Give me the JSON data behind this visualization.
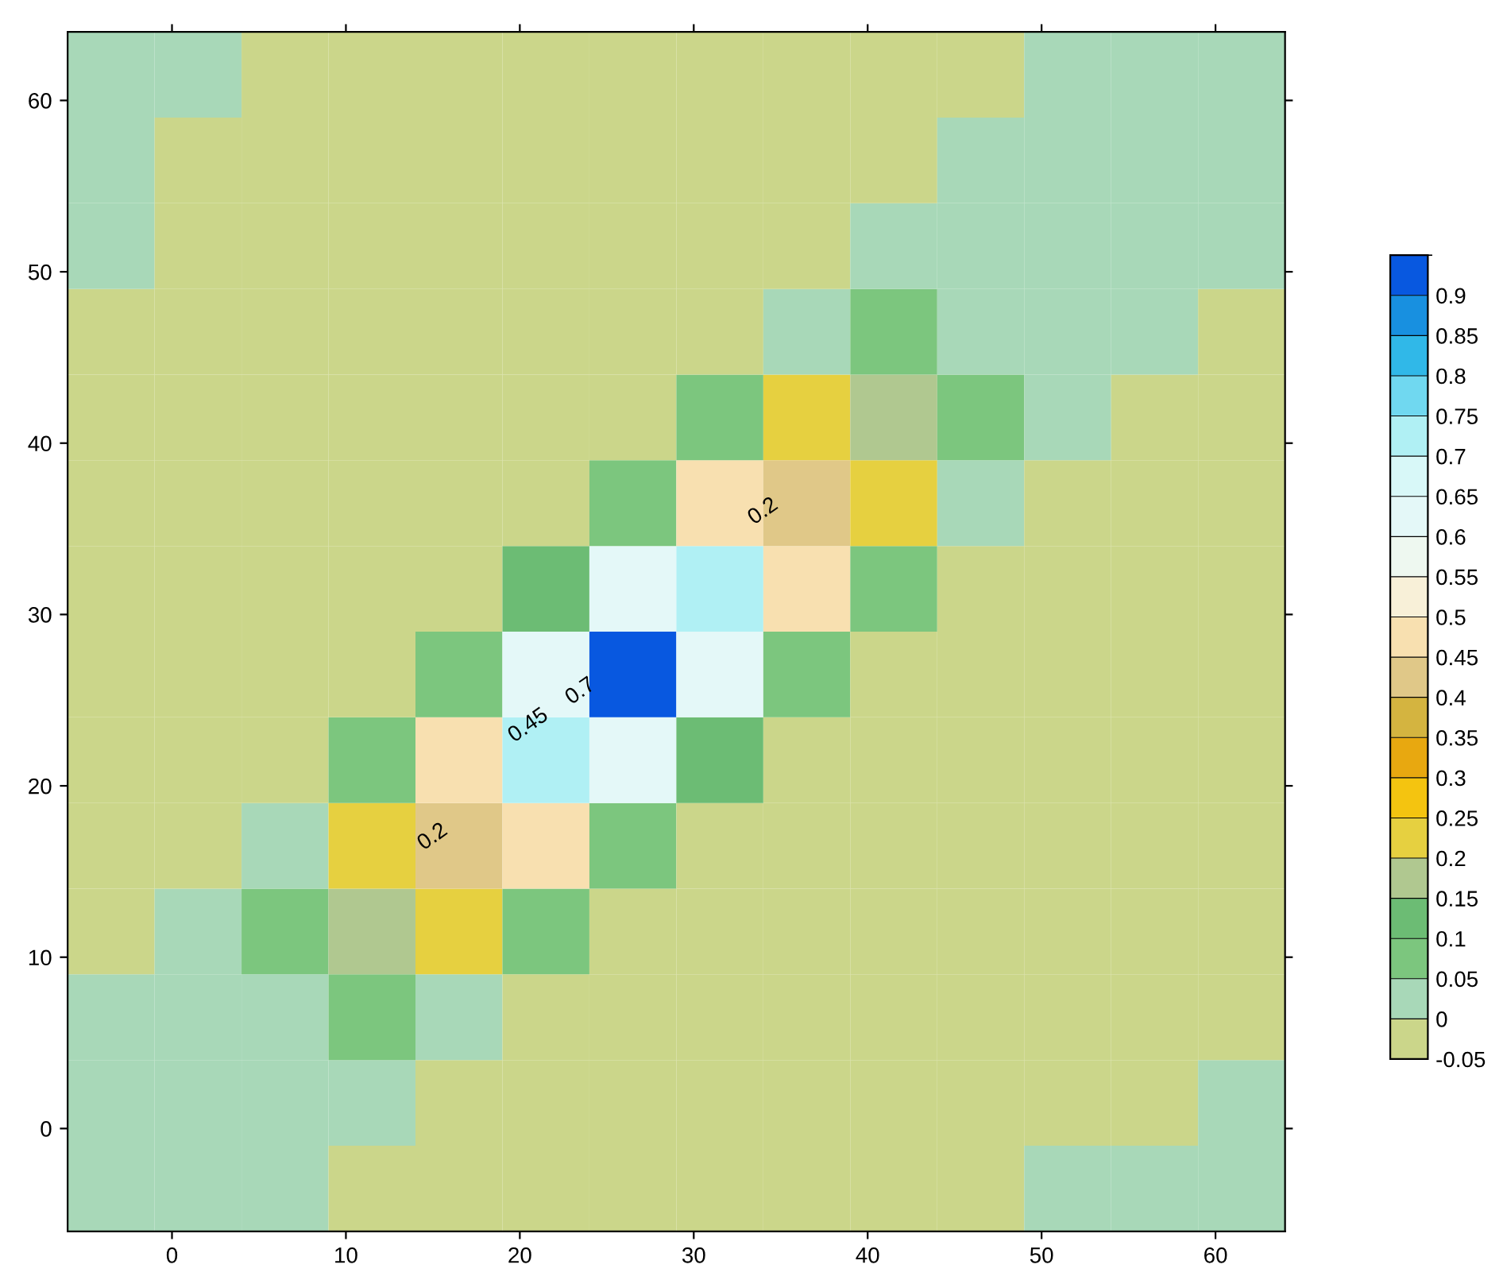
{
  "chart_data": {
    "type": "heatmap",
    "x": [
      -3.5,
      1.5,
      6.5,
      11.5,
      16.5,
      21.5,
      26.5,
      31.5,
      36.5,
      41.5,
      46.5,
      51.5,
      56.5,
      61.5
    ],
    "y": [
      -3.5,
      1.5,
      6.5,
      11.5,
      16.5,
      21.5,
      26.5,
      31.5,
      36.5,
      41.5,
      46.5,
      51.5,
      56.5,
      61.5
    ],
    "cells": [
      [
        0.025,
        0.025,
        0.025,
        -0.025,
        -0.025,
        -0.025,
        -0.025,
        -0.025,
        -0.025,
        -0.025,
        -0.025,
        0.025,
        0.025,
        0.025
      ],
      [
        0.025,
        0.025,
        0.025,
        0.025,
        -0.025,
        -0.025,
        -0.025,
        -0.025,
        -0.025,
        -0.025,
        -0.025,
        -0.025,
        -0.025,
        0.025
      ],
      [
        0.025,
        0.025,
        0.04,
        0.08,
        0.025,
        -0.025,
        -0.025,
        -0.025,
        -0.025,
        -0.025,
        -0.025,
        -0.025,
        -0.025,
        -0.025
      ],
      [
        -0.025,
        0.025,
        0.08,
        0.17,
        0.25,
        0.06,
        -0.025,
        -0.025,
        -0.025,
        -0.025,
        -0.025,
        -0.025,
        -0.025,
        -0.025
      ],
      [
        -0.025,
        -0.025,
        0.025,
        0.25,
        0.42,
        0.45,
        0.1,
        -0.025,
        -0.025,
        -0.025,
        -0.025,
        -0.025,
        -0.025,
        -0.025
      ],
      [
        -0.025,
        -0.025,
        -0.025,
        0.06,
        0.45,
        0.72,
        0.6,
        0.12,
        -0.025,
        -0.025,
        -0.025,
        -0.025,
        -0.025,
        -0.025
      ],
      [
        -0.025,
        -0.025,
        -0.025,
        -0.025,
        0.1,
        0.6,
        0.92,
        0.6,
        0.1,
        -0.025,
        -0.025,
        -0.025,
        -0.025,
        -0.025
      ],
      [
        -0.025,
        -0.025,
        -0.025,
        -0.025,
        -0.025,
        0.12,
        0.6,
        0.72,
        0.45,
        0.06,
        -0.025,
        -0.025,
        -0.025,
        -0.025
      ],
      [
        -0.025,
        -0.025,
        -0.025,
        -0.025,
        -0.025,
        -0.025,
        0.1,
        0.45,
        0.42,
        0.25,
        0.025,
        -0.025,
        -0.025,
        -0.025
      ],
      [
        -0.025,
        -0.025,
        -0.025,
        -0.025,
        -0.025,
        -0.025,
        -0.025,
        0.06,
        0.25,
        0.17,
        0.08,
        0.025,
        -0.025,
        -0.025
      ],
      [
        -0.025,
        -0.025,
        -0.025,
        -0.025,
        -0.025,
        -0.025,
        -0.025,
        -0.025,
        0.025,
        0.08,
        0.04,
        0.025,
        0.025,
        -0.025
      ],
      [
        0.025,
        -0.025,
        -0.025,
        -0.025,
        -0.025,
        -0.025,
        -0.025,
        -0.025,
        -0.025,
        0.025,
        0.025,
        0.025,
        0.025,
        0.025
      ],
      [
        0.025,
        -0.025,
        -0.025,
        -0.025,
        -0.025,
        -0.025,
        -0.025,
        -0.025,
        -0.025,
        -0.025,
        0.025,
        0.025,
        0.025,
        0.025
      ],
      [
        0.025,
        0.025,
        -0.025,
        -0.025,
        -0.025,
        -0.025,
        -0.025,
        -0.025,
        -0.025,
        -0.025,
        -0.025,
        0.025,
        0.025,
        0.025
      ]
    ],
    "colors": [
      "#cbd68a",
      "#a8d8b8",
      "#7cc67e",
      "#6cbc74",
      "#b0c890",
      "#e6d040",
      "#f4c410",
      "#e8a810",
      "#d4b440",
      "#e0c888",
      "#f8e0b0",
      "#f8f0d8",
      "#eef8f0",
      "#e4f8f8",
      "#d8f8f8",
      "#b0f0f4",
      "#70d8f0",
      "#30b8e8",
      "#1890e0",
      "#0858e0"
    ],
    "clim": [
      -0.05,
      0.95
    ],
    "cticks": [
      -0.05,
      0,
      0.05,
      0.1,
      0.15,
      0.2,
      0.25,
      0.3,
      0.35,
      0.4,
      0.45,
      0.5,
      0.55,
      0.6,
      0.65,
      0.7,
      0.75,
      0.8,
      0.85,
      0.9
    ],
    "xlim": [
      -6,
      64
    ],
    "ylim": [
      -6,
      64
    ],
    "xticks": [
      0,
      10,
      20,
      30,
      40,
      50,
      60
    ],
    "yticks": [
      0,
      10,
      20,
      30,
      40,
      50,
      60
    ],
    "annotations": [
      "0.2",
      "0.2",
      "0.45",
      "0.7"
    ]
  }
}
